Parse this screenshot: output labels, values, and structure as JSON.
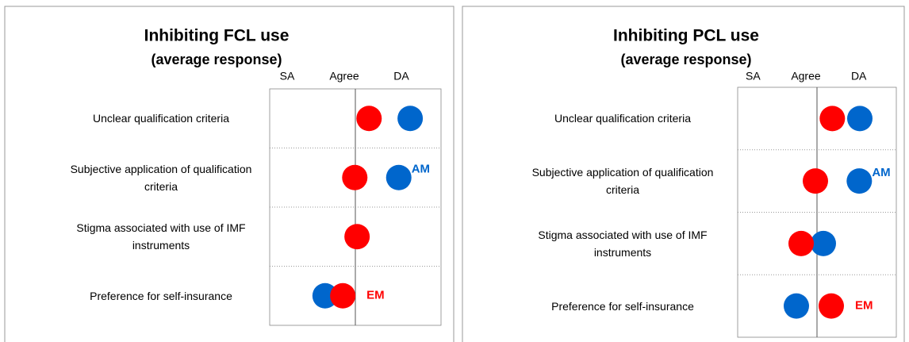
{
  "chart_data": [
    {
      "type": "dot",
      "title": "Inhibiting FCL use",
      "subtitle": "(average response)",
      "categories": [
        "Unclear qualification criteria",
        "Subjective application of qualification criteria",
        "Stigma associated with use of IMF instruments",
        "Preference for self-insurance"
      ],
      "series": [
        {
          "name": "EM",
          "color": "#ff0000",
          "values": [
            2.24,
            1.99,
            2.03,
            1.78
          ]
        },
        {
          "name": "AM",
          "color": "#0066cc",
          "values": [
            2.96,
            2.76,
            null,
            1.47
          ]
        }
      ],
      "xlim": [
        0.5,
        3.5
      ],
      "xticks": [
        {
          "value": 1,
          "label": "SA"
        },
        {
          "value": 2,
          "label": "Agree"
        },
        {
          "value": 3,
          "label": "DA"
        }
      ]
    },
    {
      "type": "dot",
      "title": "Inhibiting PCL use",
      "subtitle": "(average response)",
      "categories": [
        "Unclear qualification criteria",
        "Subjective application of qualification criteria",
        "Stigma associated with use of IMF instruments",
        "Preference for self-insurance"
      ],
      "series": [
        {
          "name": "EM",
          "color": "#ff0000",
          "values": [
            2.29,
            1.97,
            1.7,
            2.27
          ]
        },
        {
          "name": "AM",
          "color": "#0066cc",
          "values": [
            2.81,
            2.8,
            2.12,
            1.61
          ]
        }
      ],
      "xlim": [
        0.5,
        3.5
      ],
      "xticks": [
        {
          "value": 1,
          "label": "SA"
        },
        {
          "value": 2,
          "label": "Agree"
        },
        {
          "value": 3,
          "label": "DA"
        }
      ]
    }
  ]
}
